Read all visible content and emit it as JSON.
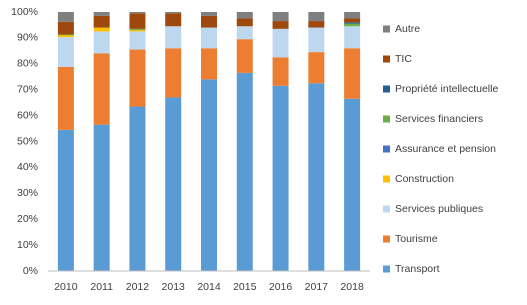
{
  "chart_data": {
    "type": "stacked_bar",
    "categories": [
      "2010",
      "2011",
      "2012",
      "2013",
      "2014",
      "2015",
      "2016",
      "2017",
      "2018"
    ],
    "series": [
      {
        "name": "Transport",
        "color": "#5b9bd5",
        "values": [
          54.5,
          56.5,
          63.5,
          67,
          74,
          76.5,
          71.5,
          72.5,
          66.5
        ]
      },
      {
        "name": "Tourisme",
        "color": "#ed7d31",
        "values": [
          24.3,
          27.5,
          22,
          19,
          12,
          13,
          11,
          12,
          19.5
        ]
      },
      {
        "name": "Services publiques",
        "color": "#bdd7ee",
        "values": [
          11.5,
          8.5,
          7,
          8.5,
          8,
          5,
          11,
          9.5,
          8.5
        ]
      },
      {
        "name": "Construction",
        "color": "#ffc000",
        "values": [
          0.7,
          1.5,
          0.5,
          0,
          0,
          0,
          0,
          0,
          0
        ]
      },
      {
        "name": "Assurance et pension",
        "color": "#4472c4",
        "values": [
          0,
          0,
          0,
          0,
          0,
          0,
          0,
          0,
          0
        ]
      },
      {
        "name": "Services financiers",
        "color": "#70ad47",
        "values": [
          0.3,
          0,
          0.5,
          0,
          0,
          0,
          0,
          0,
          1
        ]
      },
      {
        "name": "Propriété intellectuelle",
        "color": "#255e91",
        "values": [
          0,
          0,
          0,
          0,
          0,
          0,
          0,
          0,
          0.5
        ]
      },
      {
        "name": "TIC",
        "color": "#9e480e",
        "values": [
          4.9,
          4.5,
          6,
          5,
          4.5,
          3,
          3,
          2.5,
          1.5
        ]
      },
      {
        "name": "Autre",
        "color": "#7f7f7f",
        "values": [
          3.8,
          1.5,
          0.5,
          0.5,
          1.5,
          2.5,
          3.5,
          3.5,
          2.5
        ]
      }
    ],
    "ylim": [
      0,
      100
    ],
    "yticks": [
      {
        "value": 0,
        "label": "0%"
      },
      {
        "value": 10,
        "label": "10%"
      },
      {
        "value": 20,
        "label": "20%"
      },
      {
        "value": 30,
        "label": "30%"
      },
      {
        "value": 40,
        "label": "40%"
      },
      {
        "value": 50,
        "label": "50%"
      },
      {
        "value": 60,
        "label": "60%"
      },
      {
        "value": 70,
        "label": "70%"
      },
      {
        "value": 80,
        "label": "80%"
      },
      {
        "value": 90,
        "label": "90%"
      },
      {
        "value": 100,
        "label": "100%"
      }
    ],
    "grid": false,
    "legend": "right"
  }
}
